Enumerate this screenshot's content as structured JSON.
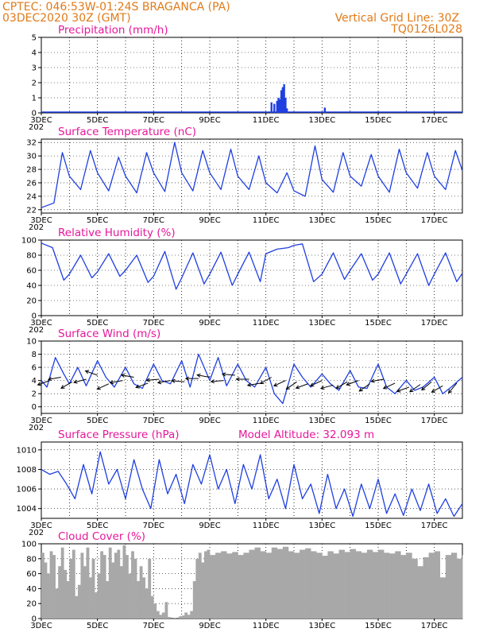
{
  "header": {
    "station": "CPTEC:   046:53W-01:24S   BRAGANCA (PA)",
    "run_time": "03DEC2020 30Z (GMT)",
    "grid_info": "Vertical Grid Line: 30Z",
    "model_code": "TQ0126L028"
  },
  "colors": {
    "header": "#e07b1a",
    "title": "#e6179a",
    "series": "#1f3fe0",
    "cloud": "#a8a8a8",
    "arrow": "#000000"
  },
  "date_axis": {
    "labels": [
      "3DEC",
      "5DEC",
      "7DEC",
      "9DEC",
      "11DEC",
      "13DEC",
      "15DEC",
      "17DEC"
    ],
    "label_days": [
      3,
      5,
      7,
      9,
      11,
      13,
      15,
      17
    ],
    "grid_days": [
      4,
      5,
      6,
      7,
      8,
      9,
      10,
      11,
      12,
      13,
      14,
      15,
      16,
      17
    ],
    "range_days": [
      3,
      18
    ],
    "year_stub": "202"
  },
  "chart_data": [
    {
      "type": "bar",
      "title": "Precipitation (mm/h)",
      "ylim": [
        0,
        5
      ],
      "yticks": [
        "0",
        "1",
        "2",
        "3",
        "4",
        "5"
      ],
      "x": [
        11.2,
        11.3,
        11.4,
        11.45,
        11.5,
        11.55,
        11.6,
        11.65,
        11.7,
        11.75,
        13.1
      ],
      "values": [
        0.7,
        0.6,
        0.8,
        1.0,
        0.9,
        1.5,
        1.7,
        1.9,
        1.0,
        0.3,
        0.35
      ],
      "baseline": 0.05
    },
    {
      "type": "line",
      "title": "Surface Temperature (nC)",
      "ylim": [
        21.5,
        32.5
      ],
      "yticks": [
        "22",
        "24",
        "26",
        "28",
        "30",
        "32"
      ],
      "x": [
        3.0,
        3.45,
        3.75,
        4.0,
        4.4,
        4.75,
        5.0,
        5.4,
        5.75,
        6.0,
        6.4,
        6.75,
        7.0,
        7.4,
        7.75,
        8.0,
        8.4,
        8.75,
        9.0,
        9.4,
        9.75,
        10.0,
        10.4,
        10.75,
        11.0,
        11.4,
        11.75,
        12.0,
        12.4,
        12.75,
        13.0,
        13.4,
        13.75,
        14.0,
        14.4,
        14.75,
        15.0,
        15.4,
        15.75,
        16.0,
        16.4,
        16.75,
        17.0,
        17.4,
        17.75,
        18.0
      ],
      "values": [
        22.3,
        23.0,
        30.5,
        27.0,
        25.0,
        30.8,
        27.5,
        24.8,
        29.8,
        27.0,
        24.5,
        30.5,
        27.5,
        24.7,
        32.0,
        27.5,
        24.8,
        30.8,
        27.5,
        25.0,
        31.0,
        27.0,
        25.0,
        30.0,
        26.0,
        24.5,
        27.5,
        24.8,
        24.0,
        31.5,
        26.5,
        24.6,
        30.5,
        27.0,
        25.5,
        30.2,
        27.0,
        24.6,
        31.0,
        27.5,
        25.2,
        30.5,
        27.0,
        25.0,
        30.8,
        27.8
      ],
      "series_name": "Temperature"
    },
    {
      "type": "line",
      "title": "Relative Humidity (%)",
      "ylim": [
        0,
        100
      ],
      "yticks": [
        "0",
        "20",
        "40",
        "60",
        "80",
        "100"
      ],
      "x": [
        3.0,
        3.4,
        3.8,
        4.0,
        4.4,
        4.8,
        5.0,
        5.4,
        5.8,
        6.0,
        6.4,
        6.8,
        7.0,
        7.4,
        7.8,
        8.0,
        8.4,
        8.8,
        9.0,
        9.4,
        9.8,
        10.0,
        10.4,
        10.8,
        11.0,
        11.4,
        11.8,
        12.0,
        12.3,
        12.7,
        13.0,
        13.4,
        13.8,
        14.0,
        14.4,
        14.8,
        15.0,
        15.4,
        15.8,
        16.0,
        16.4,
        16.8,
        17.0,
        17.4,
        17.8,
        18.0
      ],
      "values": [
        96.0,
        90.0,
        47.0,
        55.0,
        80.0,
        50.0,
        58.0,
        82.0,
        52.0,
        60.0,
        80.0,
        44.0,
        52.0,
        85.0,
        35.0,
        50.0,
        83.0,
        42.0,
        55.0,
        84.0,
        40.0,
        55.0,
        84.0,
        45.0,
        82.0,
        88.0,
        90.0,
        93.0,
        95.0,
        45.0,
        55.0,
        83.0,
        48.0,
        60.0,
        82.0,
        47.0,
        55.0,
        83.0,
        42.0,
        55.0,
        82.0,
        40.0,
        55.0,
        83.0,
        45.0,
        56.0
      ],
      "series_name": "Relative Humidity"
    },
    {
      "type": "line",
      "title": "Surface Wind (m/s)",
      "ylim": [
        -1,
        10
      ],
      "yticks": [
        "0",
        "2",
        "4",
        "6",
        "8",
        "10"
      ],
      "x": [
        3.0,
        3.2,
        3.5,
        3.8,
        4.0,
        4.3,
        4.6,
        5.0,
        5.3,
        5.6,
        6.0,
        6.3,
        6.6,
        7.0,
        7.3,
        7.6,
        8.0,
        8.3,
        8.6,
        9.0,
        9.3,
        9.6,
        10.0,
        10.3,
        10.6,
        11.0,
        11.3,
        11.6,
        12.0,
        12.3,
        12.6,
        13.0,
        13.3,
        13.6,
        14.0,
        14.3,
        14.6,
        15.0,
        15.3,
        15.6,
        16.0,
        16.3,
        16.6,
        17.0,
        17.3,
        17.6,
        18.0
      ],
      "values": [
        4.0,
        3.0,
        7.5,
        5.0,
        3.5,
        6.0,
        3.2,
        7.0,
        4.5,
        3.0,
        6.0,
        3.5,
        2.8,
        6.5,
        4.0,
        3.5,
        7.0,
        3.0,
        8.0,
        4.0,
        7.5,
        3.2,
        6.5,
        4.0,
        3.0,
        6.0,
        2.0,
        0.5,
        6.5,
        4.5,
        3.0,
        5.0,
        3.5,
        2.5,
        5.5,
        3.0,
        2.8,
        6.5,
        3.0,
        2.0,
        4.0,
        2.5,
        3.0,
        4.5,
        2.0,
        3.0,
        4.5
      ],
      "arrows_x": [
        3.3,
        3.7,
        4.1,
        4.6,
        5.0,
        5.4,
        5.9,
        6.3,
        6.8,
        7.2,
        7.6,
        8.1,
        8.6,
        9.0,
        9.5,
        9.9,
        10.4,
        10.8,
        11.2,
        11.7,
        12.1,
        12.5,
        13.0,
        13.4,
        13.9,
        14.3,
        14.7,
        15.2,
        15.6,
        16.1,
        16.5,
        16.9,
        17.3,
        17.8
      ],
      "arrows_speed": [
        4.0,
        4.5,
        3.8,
        4.2,
        4.8,
        3.5,
        4.0,
        4.5,
        3.6,
        4.2,
        4.0,
        3.8,
        4.3,
        4.5,
        4.0,
        4.8,
        4.2,
        3.6,
        4.5,
        4.0,
        3.8,
        3.5,
        4.0,
        3.3,
        3.8,
        4.0,
        3.5,
        4.2,
        3.6,
        3.0,
        3.4,
        3.8,
        3.2,
        3.6
      ],
      "arrows_dir_deg": [
        200,
        190,
        210,
        195,
        160,
        205,
        190,
        170,
        200,
        185,
        190,
        175,
        180,
        170,
        185,
        175,
        180,
        190,
        210,
        205,
        215,
        200,
        205,
        195,
        210,
        200,
        215,
        190,
        205,
        200,
        215,
        220,
        210,
        230
      ],
      "series_name": "Wind Speed"
    },
    {
      "type": "line",
      "title": "Surface Pressure (hPa)",
      "subtitle": "Model Altitude: 32.093 m",
      "ylim": [
        1003,
        1010.8
      ],
      "yticks": [
        "1004",
        "1006",
        "1008",
        "1010"
      ],
      "x": [
        3.0,
        3.3,
        3.6,
        3.9,
        4.2,
        4.5,
        4.8,
        5.1,
        5.4,
        5.7,
        6.0,
        6.3,
        6.6,
        6.9,
        7.2,
        7.5,
        7.8,
        8.1,
        8.4,
        8.7,
        9.0,
        9.3,
        9.6,
        9.9,
        10.2,
        10.5,
        10.8,
        11.1,
        11.4,
        11.7,
        12.0,
        12.3,
        12.6,
        12.9,
        13.2,
        13.5,
        13.8,
        14.1,
        14.4,
        14.7,
        15.0,
        15.3,
        15.6,
        15.9,
        16.2,
        16.5,
        16.8,
        17.1,
        17.4,
        17.7,
        18.0
      ],
      "values": [
        1008.0,
        1007.5,
        1007.8,
        1006.5,
        1005.0,
        1008.5,
        1005.5,
        1009.8,
        1006.5,
        1008.0,
        1005.0,
        1009.0,
        1006.0,
        1004.0,
        1009.0,
        1005.5,
        1007.5,
        1004.5,
        1008.5,
        1006.5,
        1009.5,
        1006.0,
        1008.0,
        1004.5,
        1008.5,
        1006.0,
        1009.5,
        1005.0,
        1007.0,
        1004.0,
        1008.5,
        1005.0,
        1006.5,
        1003.5,
        1007.5,
        1004.0,
        1006.0,
        1003.2,
        1006.5,
        1004.0,
        1007.0,
        1003.5,
        1005.5,
        1003.3,
        1006.0,
        1003.8,
        1006.5,
        1003.5,
        1005.0,
        1003.2,
        1004.5
      ],
      "series_name": "Pressure"
    },
    {
      "type": "area",
      "title": "Cloud Cover (%)",
      "ylim": [
        0,
        100
      ],
      "yticks": [
        "0",
        "20",
        "40",
        "60",
        "80",
        "100"
      ],
      "x": [
        3.0,
        3.1,
        3.2,
        3.3,
        3.4,
        3.5,
        3.6,
        3.7,
        3.8,
        3.9,
        4.0,
        4.1,
        4.2,
        4.3,
        4.4,
        4.5,
        4.6,
        4.7,
        4.8,
        4.9,
        5.0,
        5.1,
        5.2,
        5.3,
        5.4,
        5.5,
        5.6,
        5.7,
        5.8,
        5.9,
        6.0,
        6.1,
        6.2,
        6.3,
        6.4,
        6.5,
        6.6,
        6.7,
        6.8,
        6.9,
        7.0,
        7.1,
        7.2,
        7.3,
        7.4,
        7.5,
        7.6,
        7.7,
        7.8,
        7.9,
        8.0,
        8.1,
        8.2,
        8.3,
        8.4,
        8.5,
        8.6,
        8.7,
        8.8,
        8.9,
        9.0,
        9.2,
        9.4,
        9.6,
        9.8,
        10.0,
        10.2,
        10.4,
        10.6,
        10.8,
        11.0,
        11.2,
        11.4,
        11.6,
        11.8,
        12.0,
        12.2,
        12.4,
        12.6,
        12.8,
        13.0,
        13.2,
        13.4,
        13.6,
        13.8,
        14.0,
        14.2,
        14.4,
        14.6,
        14.8,
        15.0,
        15.2,
        15.4,
        15.6,
        15.8,
        16.0,
        16.2,
        16.4,
        16.6,
        16.8,
        17.0,
        17.2,
        17.4,
        17.6,
        17.8,
        18.0
      ],
      "values": [
        88,
        75,
        60,
        90,
        85,
        40,
        70,
        95,
        65,
        50,
        80,
        92,
        30,
        45,
        88,
        70,
        95,
        55,
        80,
        35,
        60,
        90,
        85,
        50,
        95,
        75,
        88,
        92,
        70,
        98,
        85,
        60,
        90,
        80,
        50,
        70,
        55,
        40,
        80,
        30,
        20,
        10,
        5,
        8,
        22,
        2,
        0,
        1,
        0,
        3,
        4,
        8,
        5,
        10,
        50,
        80,
        88,
        75,
        90,
        92,
        85,
        88,
        90,
        87,
        89,
        85,
        88,
        92,
        95,
        90,
        88,
        95,
        93,
        96,
        90,
        88,
        92,
        94,
        90,
        88,
        84,
        90,
        87,
        92,
        89,
        93,
        90,
        88,
        92,
        89,
        92,
        88,
        87,
        90,
        85,
        88,
        80,
        70,
        82,
        88,
        90,
        55,
        85,
        88,
        80,
        85
      ],
      "series_name": "Cloud Cover"
    }
  ]
}
